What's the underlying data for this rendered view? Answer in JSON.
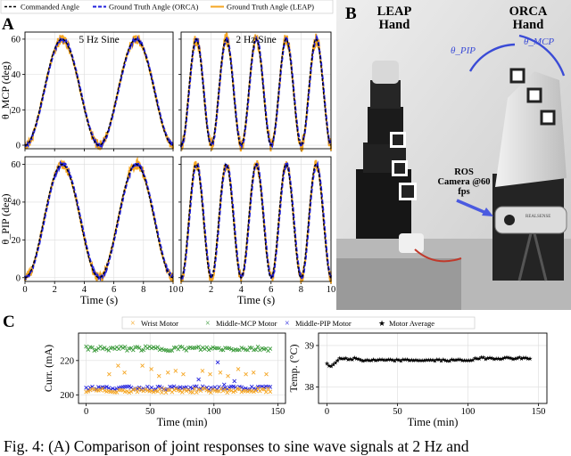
{
  "panel_labels": [
    "A",
    "B",
    "C"
  ],
  "legend_top": {
    "entries": [
      {
        "name": "Commanded Angle",
        "color": "#000000",
        "style": "dashed"
      },
      {
        "name": "Ground Truth Angle (ORCA)",
        "color": "#2222dd",
        "style": "dashed"
      },
      {
        "name": "Ground Truth Angle (LEAP)",
        "color": "#f5a623",
        "style": "solid"
      }
    ]
  },
  "photo": {
    "leap_label": "LEAP Hand",
    "orca_label": "ORCA Hand",
    "theta_pip_label": "θ_PIP",
    "theta_mcp_label": "θ_MCP",
    "camera_label": "ROS Camera @60 fps",
    "brand_text": "REALSENSE"
  },
  "caption": "Fig. 4: (A) Comparison of joint responses to sine wave signals at 2 Hz and",
  "chart_data": [
    {
      "id": "A-mcp-5hz",
      "type": "line",
      "title": "5 Hz Sine",
      "xlabel": "",
      "ylabel": "θ_MCP (deg)",
      "xlim": [
        0,
        10
      ],
      "ylim": [
        -2,
        64
      ],
      "xticks": [
        0,
        2,
        4,
        6,
        8,
        10
      ],
      "xtick_labels": [],
      "yticks": [
        0,
        20,
        40,
        60
      ],
      "ytick_labels": [
        "0",
        "20",
        "40",
        "60"
      ],
      "signal": {
        "frequency_hz": 0.2,
        "amplitude": 30,
        "offset": 30,
        "phase_deg": -90
      },
      "series": [
        {
          "name": "Commanded Angle",
          "noise": 0,
          "lag": 0
        },
        {
          "name": "Ground Truth Angle (ORCA)",
          "noise": 0.6,
          "lag": 0.04
        },
        {
          "name": "Ground Truth Angle (LEAP)",
          "noise": 1.8,
          "lag": 0.02
        }
      ],
      "grid": true
    },
    {
      "id": "A-mcp-2hz",
      "type": "line",
      "title": "2 Hz Sine",
      "xlabel": "",
      "ylabel": "",
      "xlim": [
        0,
        10
      ],
      "ylim": [
        -2,
        64
      ],
      "xticks": [
        0,
        2,
        4,
        6,
        8,
        10
      ],
      "xtick_labels": [],
      "yticks": [
        0,
        20,
        40,
        60
      ],
      "ytick_labels": [],
      "signal": {
        "frequency_hz": 0.5,
        "amplitude": 30,
        "offset": 30,
        "phase_deg": -90
      },
      "series": [
        {
          "name": "Commanded Angle",
          "noise": 0,
          "lag": 0
        },
        {
          "name": "Ground Truth Angle (ORCA)",
          "noise": 0.8,
          "lag": 0.03
        },
        {
          "name": "Ground Truth Angle (LEAP)",
          "noise": 2.4,
          "lag": 0.02
        }
      ],
      "grid": true
    },
    {
      "id": "A-pip-5hz",
      "type": "line",
      "title": "",
      "xlabel": "Time (s)",
      "ylabel": "θ_PIP (deg)",
      "xlim": [
        0,
        10
      ],
      "ylim": [
        -2,
        64
      ],
      "xticks": [
        0,
        2,
        4,
        6,
        8,
        10
      ],
      "xtick_labels": [
        "0",
        "2",
        "4",
        "6",
        "8",
        "10"
      ],
      "yticks": [
        0,
        20,
        40,
        60
      ],
      "ytick_labels": [
        "0",
        "20",
        "40",
        "60"
      ],
      "signal": {
        "frequency_hz": 0.2,
        "amplitude": 30,
        "offset": 30,
        "phase_deg": -90
      },
      "series": [
        {
          "name": "Commanded Angle",
          "noise": 0,
          "lag": 0
        },
        {
          "name": "Ground Truth Angle (ORCA)",
          "noise": 0.7,
          "lag": 0.05
        },
        {
          "name": "Ground Truth Angle (LEAP)",
          "noise": 1.6,
          "lag": 0.02
        }
      ],
      "grid": true
    },
    {
      "id": "A-pip-2hz",
      "type": "line",
      "title": "",
      "xlabel": "Time (s)",
      "ylabel": "",
      "xlim": [
        0,
        10
      ],
      "ylim": [
        -2,
        64
      ],
      "xticks": [
        0,
        2,
        4,
        6,
        8,
        10
      ],
      "xtick_labels": [
        "0",
        "2",
        "4",
        "6",
        "8",
        "10"
      ],
      "yticks": [
        0,
        20,
        40,
        60
      ],
      "ytick_labels": [],
      "signal": {
        "frequency_hz": 0.5,
        "amplitude": 30,
        "offset": 30,
        "phase_deg": -90
      },
      "series": [
        {
          "name": "Commanded Angle",
          "noise": 0,
          "lag": 0
        },
        {
          "name": "Ground Truth Angle (ORCA)",
          "noise": 0.8,
          "lag": 0.04
        },
        {
          "name": "Ground Truth Angle (LEAP)",
          "noise": 2.0,
          "lag": 0.02
        }
      ],
      "grid": true
    },
    {
      "id": "C-current",
      "type": "scatter",
      "title": "",
      "xlabel": "Time (min)",
      "ylabel": "Curr. (mA)",
      "xlim": [
        -6,
        156
      ],
      "ylim": [
        195,
        236
      ],
      "xticks": [
        0,
        50,
        100,
        150
      ],
      "xtick_labels": [
        "0",
        "50",
        "100",
        "150"
      ],
      "yticks": [
        200,
        220
      ],
      "ytick_labels": [
        "200",
        "220"
      ],
      "legend": [
        "Wrist Motor",
        "Middle-MCP Motor",
        "Middle-PIP Motor"
      ],
      "series": [
        {
          "name": "Wrist Motor",
          "color": "#f5a623",
          "base": 202.5,
          "spread": 1.2,
          "outliers": [
            [
              18,
              212
            ],
            [
              25,
              217
            ],
            [
              30,
              213
            ],
            [
              44,
              217
            ],
            [
              51,
              215
            ],
            [
              57,
              211
            ],
            [
              64,
              213
            ],
            [
              70,
              214
            ],
            [
              76,
              212
            ],
            [
              91,
              214
            ],
            [
              97,
              212
            ],
            [
              105,
              213
            ],
            [
              111,
              211
            ],
            [
              119,
              215
            ],
            [
              125,
              212
            ],
            [
              131,
              213
            ],
            [
              141,
              212
            ]
          ]
        },
        {
          "name": "Middle-MCP Motor",
          "color": "#3a9a3a",
          "base": 227,
          "spread": 1.3,
          "outliers": []
        },
        {
          "name": "Middle-PIP Motor",
          "color": "#2222dd",
          "base": 204,
          "spread": 1.0,
          "outliers": [
            [
              103,
              219
            ],
            [
              88,
              209
            ],
            [
              116,
              208
            ],
            [
              108,
              206
            ]
          ]
        }
      ],
      "grid": true
    },
    {
      "id": "C-temperature",
      "type": "line",
      "title": "",
      "xlabel": "Time (min)",
      "ylabel": "Temp. (°C)",
      "xlim": [
        -6,
        156
      ],
      "ylim": [
        37.6,
        39.3
      ],
      "xticks": [
        0,
        50,
        100,
        150
      ],
      "xtick_labels": [
        "0",
        "50",
        "100",
        "150"
      ],
      "yticks": [
        38,
        39
      ],
      "ytick_labels": [
        "38",
        "39"
      ],
      "legend": [
        "Motor Average"
      ],
      "series": [
        {
          "name": "Motor Average",
          "color": "#000000",
          "points": [
            [
              0,
              38.55
            ],
            [
              3,
              38.5
            ],
            [
              6,
              38.6
            ],
            [
              9,
              38.7
            ],
            [
              12,
              38.7
            ],
            [
              16,
              38.65
            ],
            [
              20,
              38.7
            ],
            [
              25,
              38.65
            ],
            [
              30,
              38.65
            ],
            [
              40,
              38.65
            ],
            [
              50,
              38.65
            ],
            [
              60,
              38.65
            ],
            [
              70,
              38.65
            ],
            [
              80,
              38.65
            ],
            [
              90,
              38.65
            ],
            [
              100,
              38.65
            ],
            [
              110,
              38.7
            ],
            [
              115,
              38.7
            ],
            [
              120,
              38.7
            ],
            [
              130,
              38.7
            ],
            [
              140,
              38.7
            ],
            [
              145,
              38.7
            ]
          ]
        }
      ],
      "grid": true
    }
  ]
}
